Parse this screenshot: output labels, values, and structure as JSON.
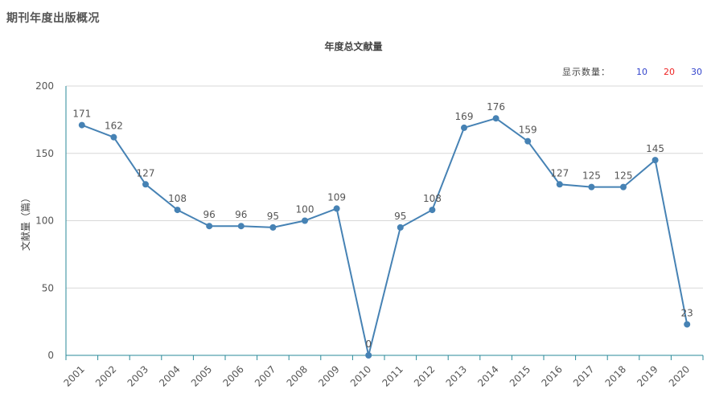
{
  "header": {
    "section_title": "期刊年度出版概况"
  },
  "display_count": {
    "label": "显示数量：",
    "options": [
      {
        "label": "10",
        "color": "#3344cc"
      },
      {
        "label": "20",
        "color": "#ee2222"
      },
      {
        "label": "30",
        "color": "#3344cc"
      }
    ]
  },
  "colors": {
    "line": "#4682b4",
    "axis": "#2a8a9a",
    "grid": "#d8d8d8",
    "text": "#555555"
  },
  "chart_data": {
    "type": "line",
    "title": "年度总文献量",
    "xlabel": "",
    "ylabel": "文献量（篇）",
    "ylim": [
      0,
      200
    ],
    "yticks": [
      "0",
      "50",
      "100",
      "150",
      "200"
    ],
    "grid": true,
    "categories": [
      "2001",
      "2002",
      "2003",
      "2004",
      "2005",
      "2006",
      "2007",
      "2008",
      "2009",
      "2010",
      "2011",
      "2012",
      "2013",
      "2014",
      "2015",
      "2016",
      "2017",
      "2018",
      "2019",
      "2020"
    ],
    "series": [
      {
        "name": "年度总文献量",
        "values": [
          171,
          162,
          127,
          108,
          96,
          96,
          95,
          100,
          109,
          0,
          95,
          108,
          169,
          176,
          159,
          127,
          125,
          125,
          145,
          23
        ]
      }
    ]
  }
}
